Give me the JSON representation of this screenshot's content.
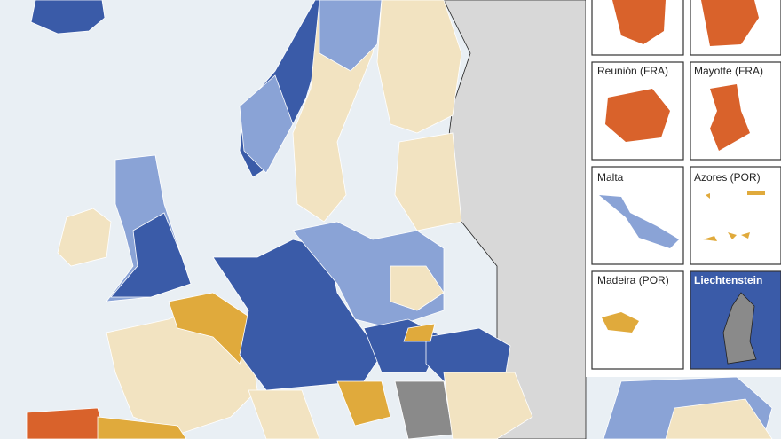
{
  "insets": [
    {
      "label": "Reunión (FRA)"
    },
    {
      "label": "Mayotte (FRA)"
    },
    {
      "label": "Malta"
    },
    {
      "label": "Azores (POR)"
    },
    {
      "label": "Madeira (POR)"
    },
    {
      "label": "Liechtenstein"
    }
  ]
}
